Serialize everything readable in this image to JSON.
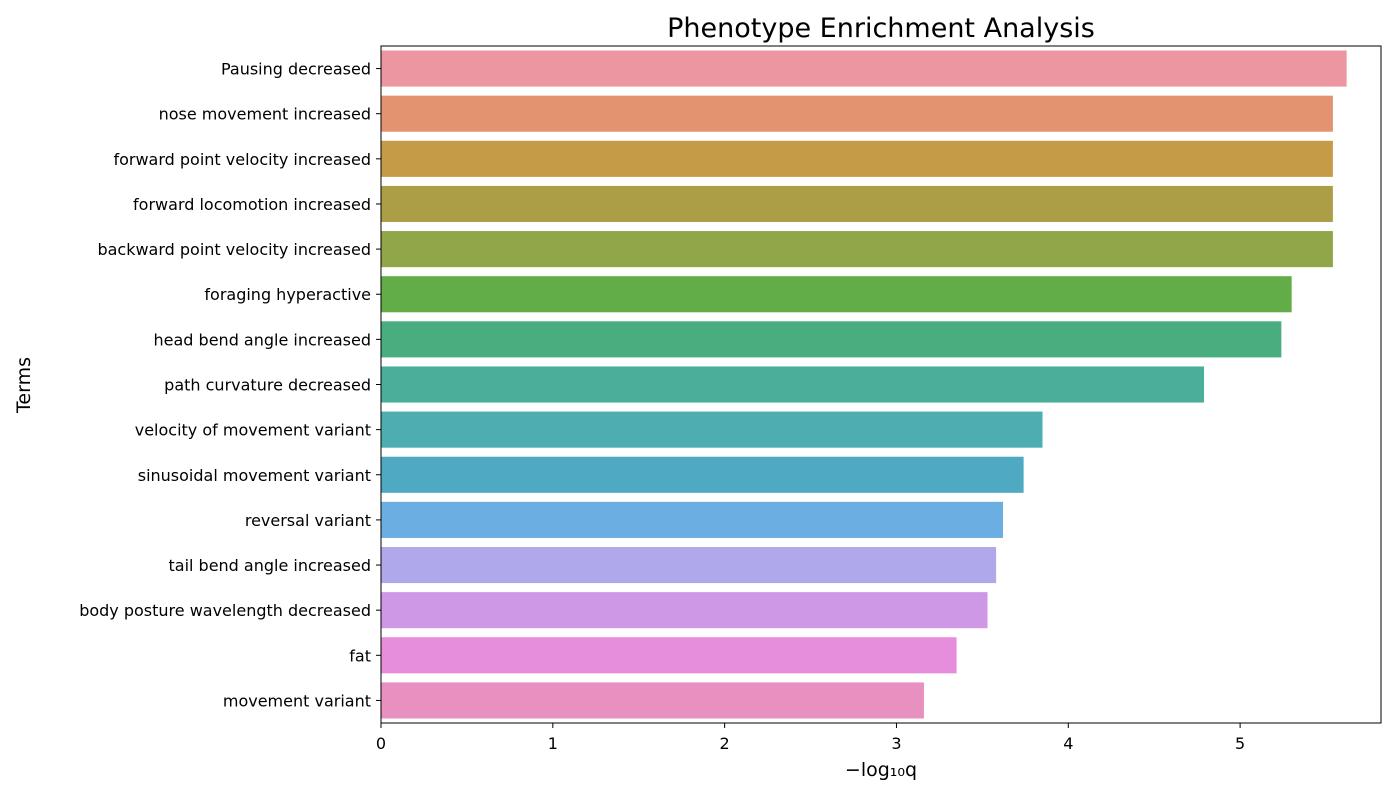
{
  "chart_data": {
    "type": "bar",
    "orientation": "horizontal",
    "title": "Phenotype Enrichment Analysis",
    "xlabel": "−log₁₀q",
    "ylabel": "Terms",
    "xlim": [
      0,
      5.82
    ],
    "xticks": [
      0,
      1,
      2,
      3,
      4,
      5
    ],
    "grid": false,
    "categories": [
      "Pausing decreased",
      "nose movement increased",
      "forward point velocity increased",
      "forward locomotion increased",
      "backward point velocity increased",
      "foraging hyperactive",
      "head bend angle increased",
      "path curvature decreased",
      "velocity of movement variant",
      "sinusoidal movement variant",
      "reversal variant",
      "tail bend angle increased",
      "body posture wavelength decreased",
      "fat",
      "movement variant"
    ],
    "values": [
      5.62,
      5.54,
      5.54,
      5.54,
      5.54,
      5.3,
      5.24,
      4.79,
      3.85,
      3.74,
      3.62,
      3.58,
      3.53,
      3.35,
      3.16
    ],
    "colors": [
      "#ec96a1",
      "#e49371",
      "#c69b48",
      "#ab9e47",
      "#91a648",
      "#62ad47",
      "#49ad80",
      "#4aae9b",
      "#4dadb1",
      "#4fa9c3",
      "#6aaee2",
      "#afa9ec",
      "#cf98e7",
      "#e68ddb",
      "#e890c0"
    ]
  }
}
